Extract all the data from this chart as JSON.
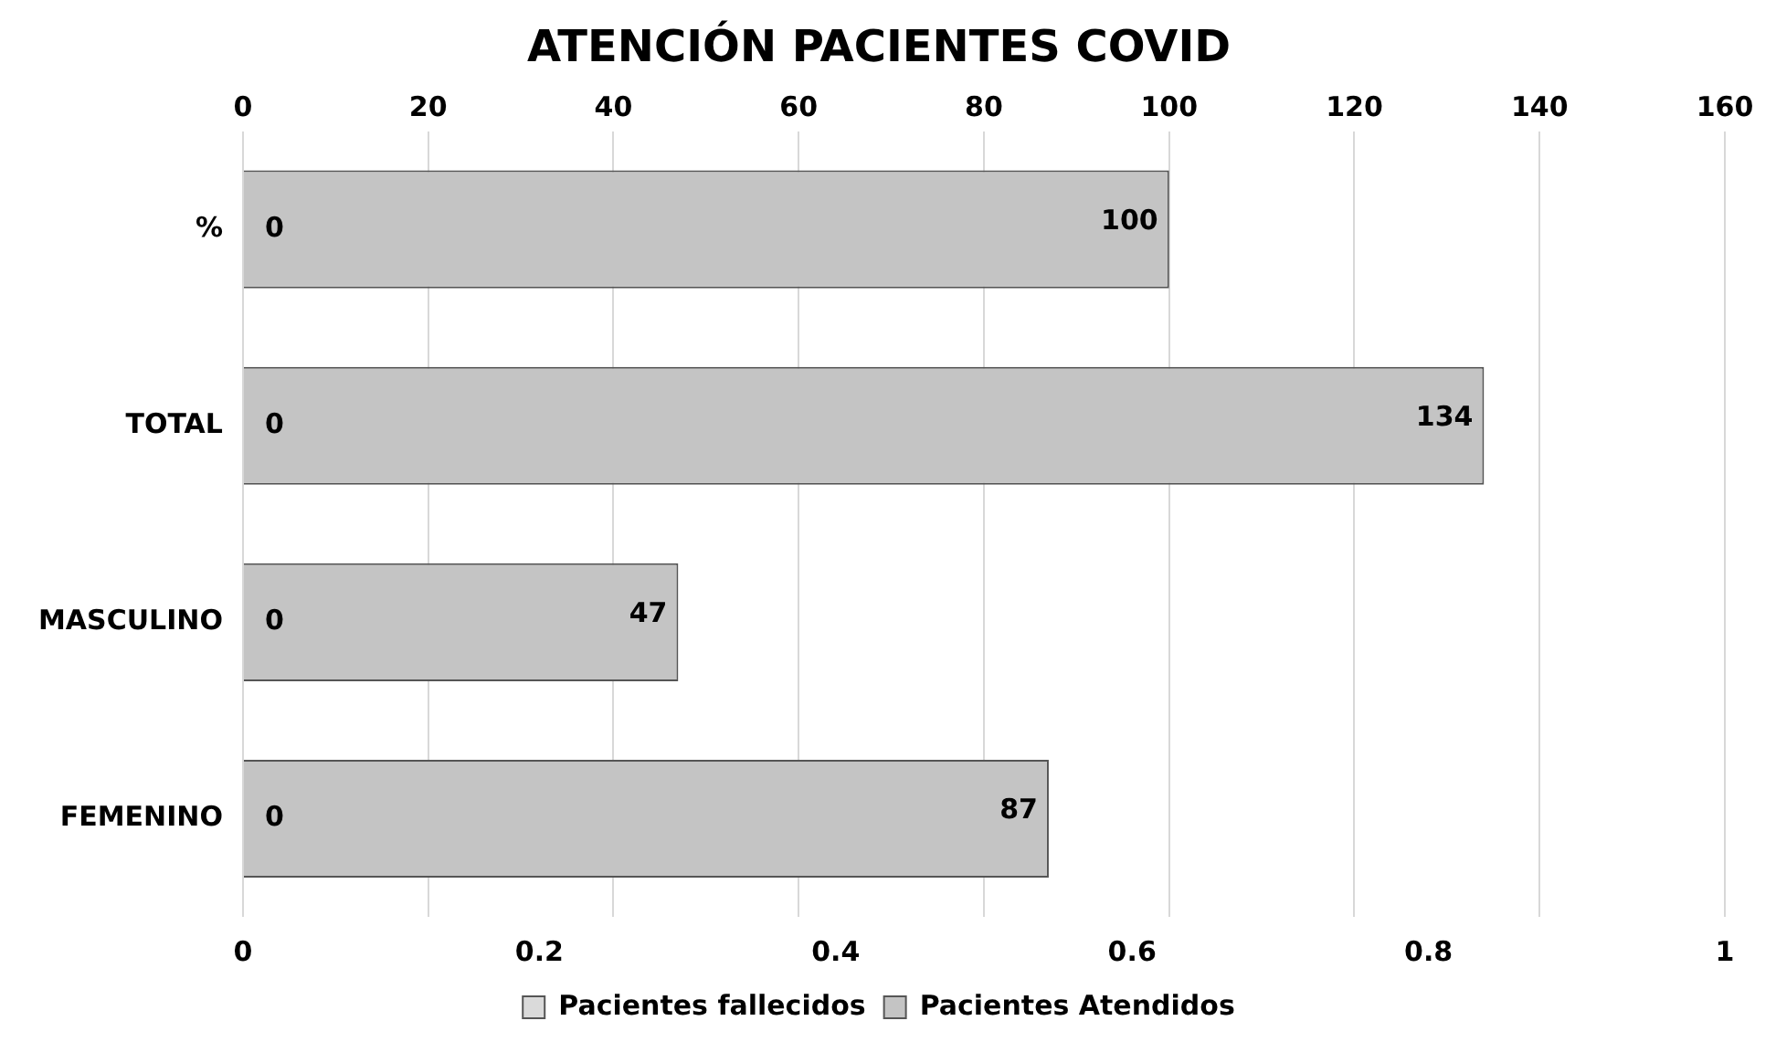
{
  "chart_data": {
    "type": "bar",
    "orientation": "horizontal",
    "title": "ATENCIÓN PACIENTES COVID",
    "categories": [
      "%",
      "TOTAL",
      "MASCULINO",
      "FEMENINO"
    ],
    "series": [
      {
        "name": "Pacientes fallecidos",
        "color": "#dadada",
        "values": [
          0,
          0,
          0,
          0
        ]
      },
      {
        "name": "Pacientes Atendidos",
        "color": "#c4c4c4",
        "values": [
          100,
          134,
          47,
          87
        ],
        "axis": "x2"
      }
    ],
    "xlim": [
      0,
      1
    ],
    "xticks": [
      0,
      0.2,
      0.4,
      0.6,
      0.8,
      1
    ],
    "x2lim": [
      0,
      160
    ],
    "x2ticks": [
      0,
      20,
      40,
      60,
      80,
      100,
      120,
      140,
      160
    ],
    "grid": "x",
    "legend": "bottom",
    "data_labels": true
  }
}
